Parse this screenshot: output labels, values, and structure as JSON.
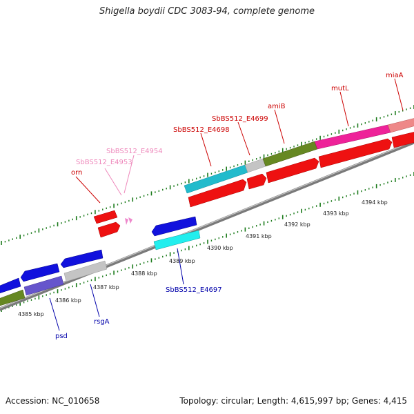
{
  "title": "Shigella boydii CDC 3083-94, complete genome",
  "footer": {
    "accession": "Accession: NC_010658",
    "topology": "Topology: circular; Length: 4,615,997 bp; Genes: 4,415"
  },
  "colors": {
    "backbone": "#8a8a8a",
    "ticks": "#1a7a1a",
    "forward_label": "#cc0000",
    "reverse_label": "#0000aa",
    "pseudo_label": "#ee88bb",
    "red": "#ee1111",
    "cyan": "#22bbcc",
    "bright_cyan": "#22eeee",
    "olive": "#668822",
    "magenta": "#ee2299",
    "salmon": "#ee8888",
    "blue": "#1111dd",
    "slate": "#6655cc",
    "gray": "#bbbbbb",
    "pink": "#ee88cc"
  },
  "scale_labels": [
    {
      "text": "4385 kbp"
    },
    {
      "text": "4386 kbp"
    },
    {
      "text": "4387 kbp"
    },
    {
      "text": "4388 kbp"
    },
    {
      "text": "4389 kbp"
    },
    {
      "text": "4390 kbp"
    },
    {
      "text": "4391 kbp"
    },
    {
      "text": "4392 kbp"
    },
    {
      "text": "4393 kbp"
    },
    {
      "text": "4394 kbp"
    }
  ],
  "gene_labels": {
    "forward": [
      "miaA",
      "mutL",
      "amiB",
      "SbBS512_E4699",
      "SbBS512_E4698",
      "orn"
    ],
    "pseudo": [
      "SbBS512_E4954",
      "SbBS512_E4953"
    ],
    "reverse": [
      "SbBS512_E4697",
      "rsgA",
      "psd"
    ]
  }
}
